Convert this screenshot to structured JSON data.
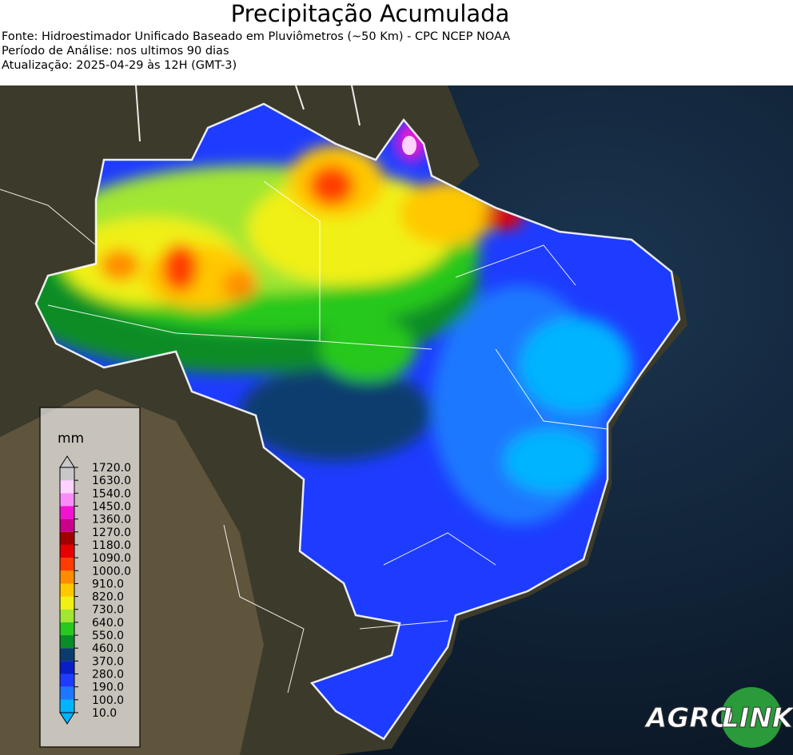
{
  "header": {
    "title": "Precipitação Acumulada",
    "lines": [
      "Fonte: Hidroestimador Unificado Baseado em Pluviômetros (~50 Km) - CPC NCEP NOAA",
      "Período de Análise: nos ultimos 90 dias",
      "Atualização: 2025-04-29 às 12H (GMT-3)"
    ]
  },
  "legend": {
    "unit": "mm",
    "ticks": [
      {
        "value": 10,
        "label": "10.0"
      },
      {
        "value": 100,
        "label": "100.0"
      },
      {
        "value": 190,
        "label": "190.0"
      },
      {
        "value": 280,
        "label": "280.0"
      },
      {
        "value": 370,
        "label": "370.0"
      },
      {
        "value": 460,
        "label": "460.0"
      },
      {
        "value": 550,
        "label": "550.0"
      },
      {
        "value": 640,
        "label": "640.0"
      },
      {
        "value": 730,
        "label": "730.0"
      },
      {
        "value": 820,
        "label": "820.0"
      },
      {
        "value": 910,
        "label": "910.0"
      },
      {
        "value": 1000,
        "label": "1000.0"
      },
      {
        "value": 1090,
        "label": "1090.0"
      },
      {
        "value": 1180,
        "label": "1180.0"
      },
      {
        "value": 1270,
        "label": "1270.0"
      },
      {
        "value": 1360,
        "label": "1360.0"
      },
      {
        "value": 1450,
        "label": "1450.0"
      },
      {
        "value": 1540,
        "label": "1540.0"
      },
      {
        "value": 1630,
        "label": "1630.0"
      },
      {
        "value": 1720,
        "label": "1720.0"
      }
    ],
    "colors": [
      "#00b4ff",
      "#1e78ff",
      "#1e3cff",
      "#0a1ec8",
      "#0a3c6e",
      "#0a8c28",
      "#28c81e",
      "#a0e632",
      "#f0f014",
      "#ffc800",
      "#ff8c00",
      "#ff3c00",
      "#e60000",
      "#a00000",
      "#c8008c",
      "#f014d2",
      "#fa8cfa",
      "#ffd2ff",
      "#c8c8c8"
    ]
  },
  "logo": {
    "left": "AGRO",
    "right": "LINK"
  }
}
